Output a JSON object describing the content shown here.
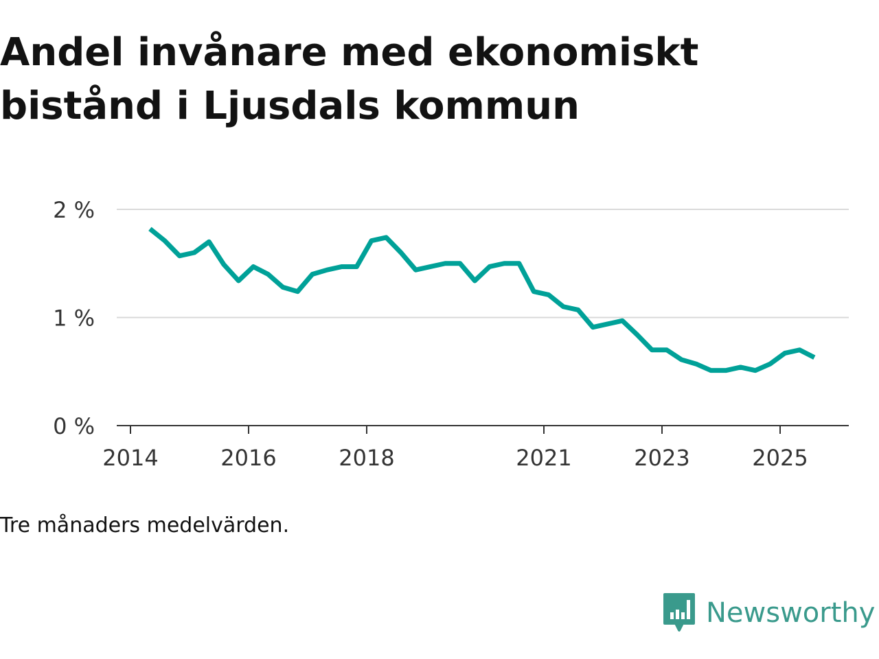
{
  "title": "Andel invånare med ekonomiskt bistånd i Ljusdals kommun",
  "note": "Tre månaders medelvärden.",
  "brand": "Newsworthy",
  "colors": {
    "line": "#00a198",
    "grid": "#d9d9d9",
    "axis": "#333333",
    "brand": "#3a9a8c"
  },
  "chart_data": {
    "type": "line",
    "title": "Andel invånare med ekonomiskt bistånd i Ljusdals kommun",
    "xlabel": "",
    "ylabel": "",
    "ylim": [
      0,
      2
    ],
    "yticks": [
      0,
      1,
      2
    ],
    "ytick_labels": [
      "0 %",
      "1 %",
      "2 %"
    ],
    "xticks": [
      2014,
      2016,
      2018,
      2021,
      2023,
      2025
    ],
    "xtick_labels": [
      "2014",
      "2016",
      "2018",
      "2021",
      "2023",
      "2025"
    ],
    "xlim": [
      2014,
      2026.2
    ],
    "grid": true,
    "series": [
      {
        "name": "Andel",
        "x_start": 2014.33,
        "x_step": 0.25,
        "values": [
          1.82,
          1.71,
          1.57,
          1.6,
          1.7,
          1.49,
          1.34,
          1.47,
          1.4,
          1.28,
          1.24,
          1.4,
          1.44,
          1.47,
          1.47,
          1.71,
          1.74,
          1.6,
          1.44,
          1.47,
          1.5,
          1.5,
          1.34,
          1.47,
          1.5,
          1.5,
          1.24,
          1.21,
          1.1,
          1.07,
          0.91,
          0.94,
          0.97,
          0.84,
          0.7,
          0.7,
          0.61,
          0.57,
          0.51,
          0.51,
          0.54,
          0.51,
          0.57,
          0.67,
          0.7,
          0.63
        ]
      }
    ]
  }
}
